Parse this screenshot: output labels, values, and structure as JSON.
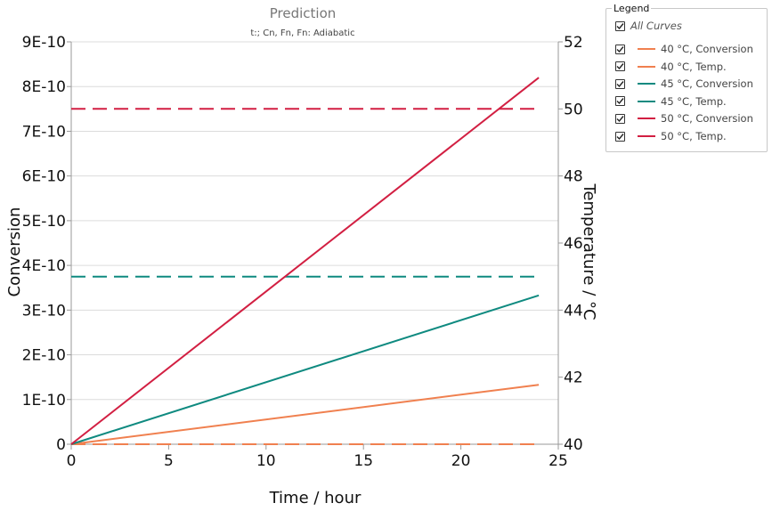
{
  "chart_data": {
    "type": "line",
    "title": "Prediction",
    "subtitle": "t:; Cn, Fn, Fn: Adiabatic",
    "xlabel": "Time / hour",
    "ylabel_left": "Conversion",
    "ylabel_right": "Temperature / °C",
    "xlim": [
      0,
      25
    ],
    "ylim_left": [
      0,
      9e-10
    ],
    "ylim_right": [
      40,
      52
    ],
    "x_ticks": [
      "0",
      "5",
      "10",
      "15",
      "20",
      "25"
    ],
    "y_left_ticks": [
      "0",
      "1E-10",
      "2E-10",
      "3E-10",
      "4E-10",
      "5E-10",
      "6E-10",
      "7E-10",
      "8E-10",
      "9E-10"
    ],
    "y_right_ticks": [
      "40",
      "42",
      "44",
      "46",
      "48",
      "50",
      "52"
    ],
    "grid": true,
    "series": [
      {
        "name": "40 °C, Conversion",
        "axis": "left",
        "color": "#f0804f",
        "dash": false,
        "x": [
          0,
          24
        ],
        "y": [
          0,
          1.33e-10
        ]
      },
      {
        "name": "40 °C, Temp.",
        "axis": "right",
        "color": "#f0804f",
        "dash": true,
        "x": [
          0,
          24
        ],
        "y": [
          40,
          40
        ]
      },
      {
        "name": "45 °C, Conversion",
        "axis": "left",
        "color": "#0f8a80",
        "dash": false,
        "x": [
          0,
          24
        ],
        "y": [
          0,
          3.33e-10
        ]
      },
      {
        "name": "45 °C, Temp.",
        "axis": "right",
        "color": "#0f8a80",
        "dash": true,
        "x": [
          0,
          24
        ],
        "y": [
          45,
          45
        ]
      },
      {
        "name": "50 °C, Conversion",
        "axis": "left",
        "color": "#d21f42",
        "dash": false,
        "x": [
          0,
          24
        ],
        "y": [
          0,
          8.2e-10
        ]
      },
      {
        "name": "50 °C, Temp.",
        "axis": "right",
        "color": "#d21f42",
        "dash": true,
        "x": [
          0,
          24
        ],
        "y": [
          50,
          50
        ]
      }
    ]
  },
  "legend": {
    "title": "Legend",
    "all_label": "All Curves",
    "items": [
      {
        "label": "40 °C, Conversion",
        "color": "#f0804f",
        "checked": true
      },
      {
        "label": "40 °C, Temp.",
        "color": "#f0804f",
        "checked": true
      },
      {
        "label": "45 °C, Conversion",
        "color": "#0f8a80",
        "checked": true
      },
      {
        "label": "45 °C, Temp.",
        "color": "#0f8a80",
        "checked": true
      },
      {
        "label": "50 °C, Conversion",
        "color": "#d21f42",
        "checked": true
      },
      {
        "label": "50 °C, Temp.",
        "color": "#d21f42",
        "checked": true
      }
    ]
  }
}
